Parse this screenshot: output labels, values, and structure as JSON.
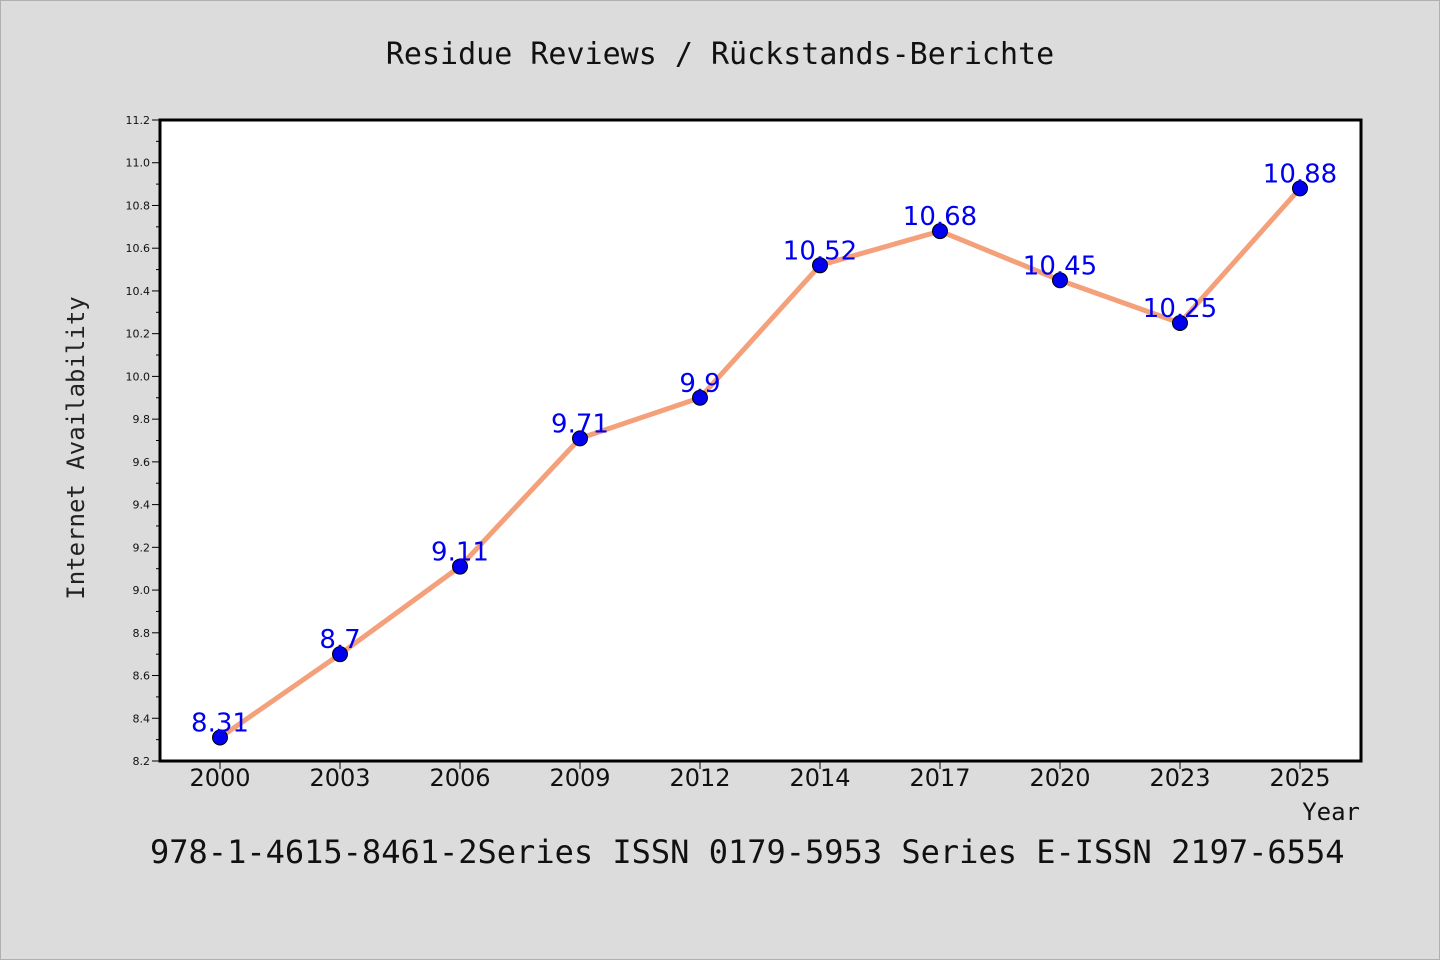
{
  "chart_data": {
    "type": "line",
    "title": "Residue Reviews / Rückstands-Berichte",
    "xlabel": "Year",
    "ylabel": "Internet Availability",
    "footer": "978-1-4615-8461-2Series ISSN 0179-5953 Series E-ISSN 2197-6554",
    "categories": [
      "2000",
      "2003",
      "2006",
      "2009",
      "2012",
      "2014",
      "2017",
      "2020",
      "2023",
      "2025"
    ],
    "values": [
      8.31,
      8.7,
      9.11,
      9.71,
      9.9,
      10.52,
      10.68,
      10.45,
      10.25,
      10.88
    ],
    "data_labels": [
      "8.31",
      "8.7",
      "9.11",
      "9.71",
      "9.9",
      "10.52",
      "10.68",
      "10.45",
      "10.25",
      "10.88"
    ],
    "ylim": [
      8.2,
      11.2
    ],
    "yticks": [
      "8.2",
      "8.4",
      "8.6",
      "8.8",
      "9.0",
      "9.2",
      "9.4",
      "9.6",
      "9.8",
      "10.0",
      "10.2",
      "10.4",
      "10.6",
      "10.8",
      "11.0",
      "11.2"
    ],
    "grid": false,
    "line_color": "#f4a07a",
    "marker_color": "#0000ee",
    "label_color": "#0000ee"
  }
}
